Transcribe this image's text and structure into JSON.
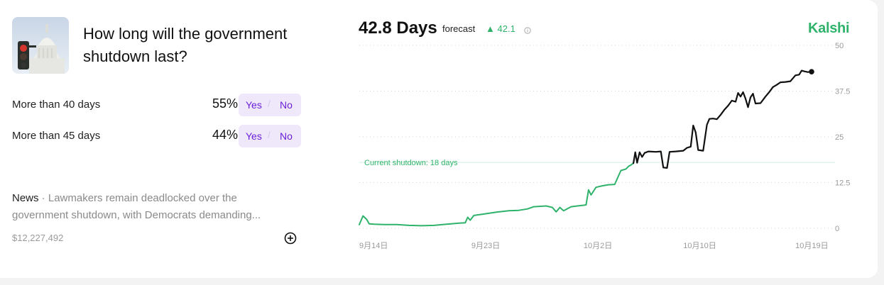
{
  "question": {
    "title": "How long will the government shutdown last?"
  },
  "outcomes": [
    {
      "label": "More than 40 days",
      "pct": "55%",
      "yes": "Yes",
      "no": "No"
    },
    {
      "label": "More than 45 days",
      "pct": "44%",
      "yes": "Yes",
      "no": "No"
    }
  ],
  "news": {
    "tag": "News",
    "separator": " · ",
    "text": "Lawmakers remain deadlocked over the government shutdown, with Democrats demanding..."
  },
  "volume": "$12,227,492",
  "forecast": {
    "value": "42.8 Days",
    "word": "forecast",
    "delta": "42.1",
    "delta_symbol": "▲"
  },
  "brand": "Kalshi",
  "colors": {
    "accent": "#2fb36b",
    "line_recent": "#111111",
    "button_bg": "#efe8fb",
    "button_text": "#6a1fd6"
  },
  "icons": {
    "info": "info-icon",
    "add": "plus-circle-icon",
    "thumbnail": "capitol-traffic-light-image"
  },
  "chart_data": {
    "type": "line",
    "title": "",
    "xlabel": "",
    "ylabel": "",
    "ylim": [
      0,
      50
    ],
    "y_ticks": [
      "50",
      "37.5",
      "25",
      "12.5",
      "0"
    ],
    "y_tick_values": [
      50,
      37.5,
      25,
      12.5,
      0
    ],
    "x_ticks": [
      "9月14日",
      "9月23日",
      "10月2日",
      "10月10日",
      "10月19日"
    ],
    "x_tick_values": [
      0,
      9,
      18,
      26,
      35
    ],
    "x_unit": "days since Sep 14",
    "xlim": [
      0,
      36.3
    ],
    "grid": true,
    "reference_line": {
      "y": 18,
      "label": "Current shutdown: 18 days"
    },
    "series": [
      {
        "color": "#2fb36b",
        "points": [
          [
            0,
            1
          ],
          [
            0.3,
            3.4
          ],
          [
            0.6,
            2.4
          ],
          [
            0.8,
            1.2
          ],
          [
            1.2,
            1.1
          ],
          [
            2,
            1.0
          ],
          [
            3,
            1.0
          ],
          [
            4,
            0.8
          ],
          [
            5,
            0.7
          ],
          [
            6,
            0.8
          ],
          [
            7,
            1.1
          ],
          [
            8,
            1.4
          ],
          [
            8.5,
            1.5
          ],
          [
            8.7,
            3.0
          ],
          [
            8.9,
            2.2
          ],
          [
            9.2,
            3.5
          ],
          [
            10,
            3.9
          ],
          [
            11,
            4.4
          ],
          [
            12,
            4.8
          ],
          [
            12.8,
            4.9
          ],
          [
            13.5,
            5.3
          ],
          [
            14,
            5.9
          ],
          [
            15,
            6.1
          ],
          [
            15.5,
            5.7
          ],
          [
            15.8,
            4.5
          ],
          [
            16.1,
            5.7
          ],
          [
            16.4,
            4.8
          ],
          [
            17,
            5.9
          ],
          [
            17.5,
            6.1
          ],
          [
            18.0,
            6.3
          ],
          [
            18.2,
            6.4
          ],
          [
            18.4,
            10.5
          ],
          [
            18.6,
            9.1
          ],
          [
            19,
            11.2
          ],
          [
            19.5,
            11.6
          ],
          [
            20,
            11.9
          ],
          [
            20.5,
            12.0
          ],
          [
            21,
            15.8
          ],
          [
            21.4,
            16.2
          ],
          [
            21.6,
            16.9
          ],
          [
            21.8,
            17.3
          ],
          [
            22.0,
            17.8
          ]
        ]
      },
      {
        "color": "#111111",
        "points": [
          [
            22.0,
            17.8
          ],
          [
            22.15,
            20.8
          ],
          [
            22.3,
            17.9
          ],
          [
            22.5,
            20.8
          ],
          [
            22.7,
            19.5
          ],
          [
            22.9,
            20.6
          ],
          [
            23.2,
            21.0
          ],
          [
            23.8,
            20.9
          ],
          [
            24.2,
            21.0
          ],
          [
            24.4,
            16.6
          ],
          [
            24.7,
            16.5
          ],
          [
            24.9,
            20.9
          ],
          [
            25.4,
            21.0
          ],
          [
            26.0,
            21.2
          ],
          [
            26.3,
            22.0
          ],
          [
            26.6,
            22.3
          ],
          [
            26.8,
            28.1
          ],
          [
            27.0,
            26.2
          ],
          [
            27.2,
            21.4
          ],
          [
            27.6,
            21.2
          ],
          [
            27.9,
            28.3
          ],
          [
            28.1,
            29.9
          ],
          [
            28.4,
            30.0
          ],
          [
            28.7,
            29.8
          ],
          [
            29.0,
            31.0
          ],
          [
            29.3,
            32.4
          ],
          [
            29.6,
            33.5
          ],
          [
            29.9,
            34.9
          ],
          [
            30.2,
            34.6
          ],
          [
            30.4,
            37.0
          ],
          [
            30.6,
            36.0
          ],
          [
            30.8,
            37.2
          ],
          [
            31.0,
            35.4
          ],
          [
            31.2,
            33.1
          ],
          [
            31.4,
            35.8
          ],
          [
            31.6,
            36.8
          ],
          [
            31.8,
            34.1
          ],
          [
            32.2,
            34.2
          ],
          [
            32.6,
            36.0
          ],
          [
            32.9,
            37.2
          ],
          [
            33.2,
            38.6
          ],
          [
            33.5,
            39.2
          ],
          [
            33.8,
            39.9
          ],
          [
            34.2,
            40.0
          ],
          [
            34.6,
            40.2
          ],
          [
            35.0,
            41.8
          ],
          [
            35.3,
            42.0
          ],
          [
            35.5,
            43.1
          ],
          [
            35.7,
            42.9
          ],
          [
            36.0,
            42.7
          ],
          [
            36.3,
            42.8
          ]
        ]
      }
    ],
    "end_marker": [
      36.3,
      42.8
    ]
  }
}
